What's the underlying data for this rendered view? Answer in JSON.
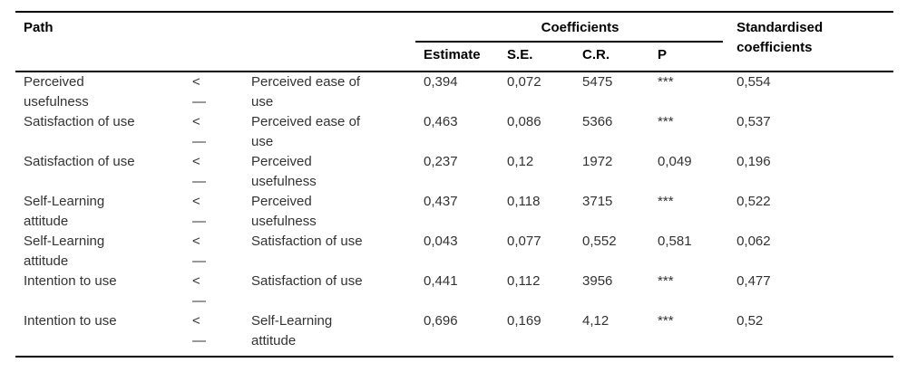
{
  "table": {
    "header": {
      "path": "Path",
      "coefficients_group": "Coefficients",
      "estimate": "Estimate",
      "se": "S.E.",
      "cr": "C.R.",
      "p": "P",
      "standardised": "Standardised\ncoefficients"
    },
    "rows": [
      {
        "dependent": "Perceived\nusefulness",
        "arrow": "<\n—",
        "predictor": "Perceived ease of\nuse",
        "estimate": "0,394",
        "se": "0,072",
        "cr": "5475",
        "p": "***",
        "std": "0,554"
      },
      {
        "dependent": "Satisfaction of use",
        "arrow": "<\n—",
        "predictor": "Perceived ease of\nuse",
        "estimate": "0,463",
        "se": "0,086",
        "cr": "5366",
        "p": "***",
        "std": "0,537"
      },
      {
        "dependent": "Satisfaction of use",
        "arrow": "<\n—",
        "predictor": "Perceived\nusefulness",
        "estimate": "0,237",
        "se": "0,12",
        "cr": "1972",
        "p": "0,049",
        "std": "0,196"
      },
      {
        "dependent": "Self-Learning\nattitude",
        "arrow": "<\n—",
        "predictor": "Perceived\nusefulness",
        "estimate": "0,437",
        "se": "0,118",
        "cr": "3715",
        "p": "***",
        "std": "0,522"
      },
      {
        "dependent": "Self-Learning\nattitude",
        "arrow": "<\n—",
        "predictor": "Satisfaction of use",
        "estimate": "0,043",
        "se": "0,077",
        "cr": "0,552",
        "p": "0,581",
        "std": "0,062"
      },
      {
        "dependent": "Intention to use",
        "arrow": "<\n—",
        "predictor": "Satisfaction of use",
        "estimate": "0,441",
        "se": "0,112",
        "cr": "3956",
        "p": "***",
        "std": "0,477"
      },
      {
        "dependent": "Intention to use",
        "arrow": "<\n—",
        "predictor": "Self-Learning\nattitude",
        "estimate": "0,696",
        "se": "0,169",
        "cr": "4,12",
        "p": "***",
        "std": "0,52"
      }
    ]
  }
}
